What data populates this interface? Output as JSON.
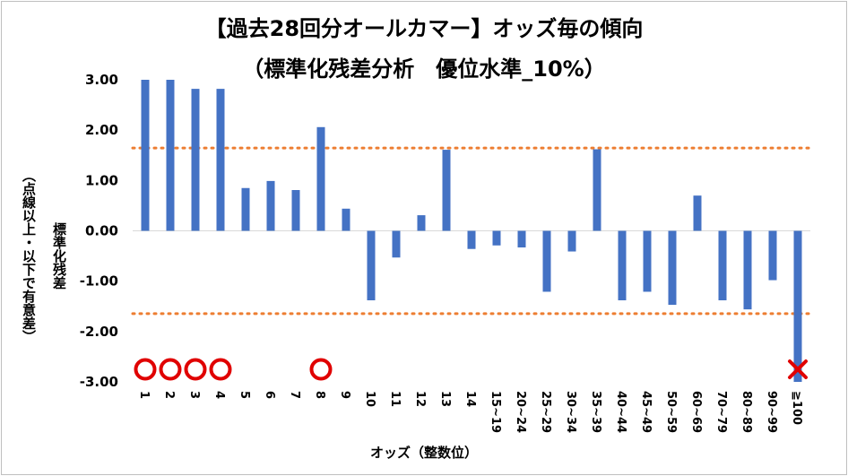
{
  "chart_data": {
    "type": "bar",
    "title": "【過去28回分オールカマー】オッズ毎の傾向",
    "subtitle": "（標準化残差分析　優位水準_10%）",
    "xlabel": "オッズ（整数位）",
    "ylabel_lines": [
      "標準化残差",
      "（点線以上・以下で有意差）"
    ],
    "categories": [
      "1",
      "2",
      "3",
      "4",
      "5",
      "6",
      "7",
      "8",
      "9",
      "10",
      "11",
      "12",
      "13",
      "14",
      "15~19",
      "20~24",
      "25~29",
      "30~34",
      "35~39",
      "40~44",
      "45~49",
      "50~59",
      "60~69",
      "70~79",
      "80~89",
      "90~99",
      "≧100"
    ],
    "values": [
      3.0,
      3.0,
      2.82,
      2.82,
      0.85,
      0.99,
      0.81,
      2.06,
      0.44,
      -1.38,
      -0.53,
      0.31,
      1.61,
      -0.36,
      -0.29,
      -0.33,
      -1.21,
      -0.41,
      1.62,
      -1.38,
      -1.21,
      -1.47,
      0.7,
      -1.38,
      -1.56,
      -0.98,
      -3.0
    ],
    "yticks": [
      "3.00",
      "2.00",
      "1.00",
      "0.00",
      "-1.00",
      "-2.00",
      "-3.00"
    ],
    "ylim": [
      -3.0,
      3.0
    ],
    "threshold": 1.645,
    "bar_color": "#4472c4",
    "threshold_color": "#ed7d31",
    "circle_color": "#e00000",
    "cross_color": "#e00000",
    "circle_categories": [
      "1",
      "2",
      "3",
      "4",
      "8"
    ],
    "cross_categories": [
      "≧100"
    ]
  }
}
